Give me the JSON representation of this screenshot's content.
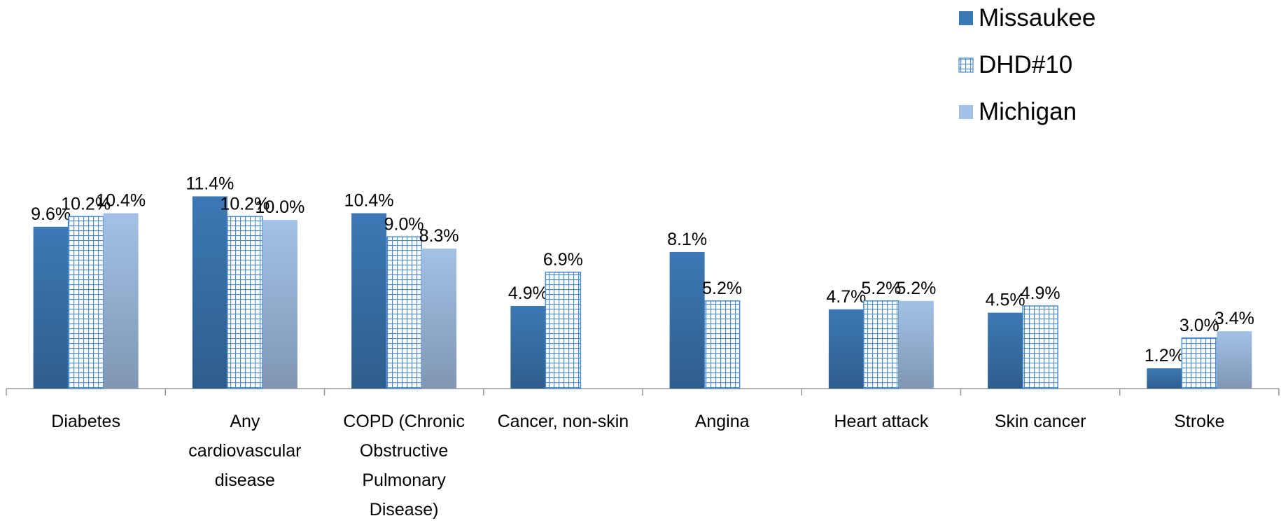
{
  "chart_data": {
    "type": "bar",
    "categories": [
      "Diabetes",
      "Any cardiovascular disease",
      "COPD (Chronic Obstructive Pulmonary Disease)",
      "Cancer, non-skin",
      "Angina",
      "Heart attack",
      "Skin cancer",
      "Stroke"
    ],
    "series": [
      {
        "name": "Missaukee",
        "color": "#3c78b4",
        "values": [
          9.6,
          11.4,
          10.4,
          4.9,
          8.1,
          4.7,
          4.5,
          1.2
        ],
        "value_labels": [
          "9.6%",
          "11.4%",
          "10.4%",
          "4.9%",
          "8.1%",
          "4.7%",
          "4.5%",
          "1.2%"
        ]
      },
      {
        "name": "DHD#10",
        "color": "#4a8ad0",
        "pattern": "grid",
        "values": [
          10.2,
          10.2,
          9.0,
          6.9,
          5.2,
          5.2,
          4.9,
          3.0
        ],
        "value_labels": [
          "10.2%",
          "10.2%",
          "9.0%",
          "6.9%",
          "5.2%",
          "5.2%",
          "4.9%",
          "3.0%"
        ]
      },
      {
        "name": "Michigan",
        "color": "#a3c1e6",
        "values": [
          10.4,
          10.0,
          8.3,
          null,
          null,
          5.2,
          null,
          3.4
        ],
        "value_labels": [
          "10.4%",
          "10.0%",
          "8.3%",
          null,
          null,
          "5.2%",
          null,
          "3.4%"
        ]
      }
    ],
    "ylim": [
      0,
      12
    ],
    "legend": "top-right"
  }
}
